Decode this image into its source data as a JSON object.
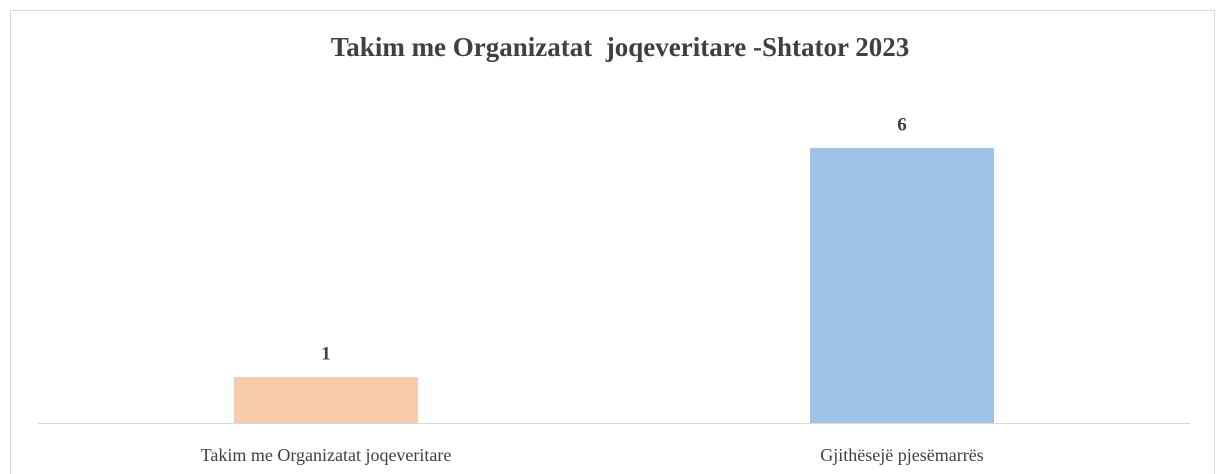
{
  "chart_data": {
    "type": "bar",
    "title": "Takim me Organizatat  joqeveritare -Shtator 2023",
    "categories": [
      "Takim me Organizatat joqeveritare",
      "Gjithësejë pjesëmarrës"
    ],
    "values": [
      1,
      6
    ],
    "colors": [
      "#f8cbad",
      "#9dc3e6"
    ],
    "ylim": [
      0,
      6
    ]
  }
}
